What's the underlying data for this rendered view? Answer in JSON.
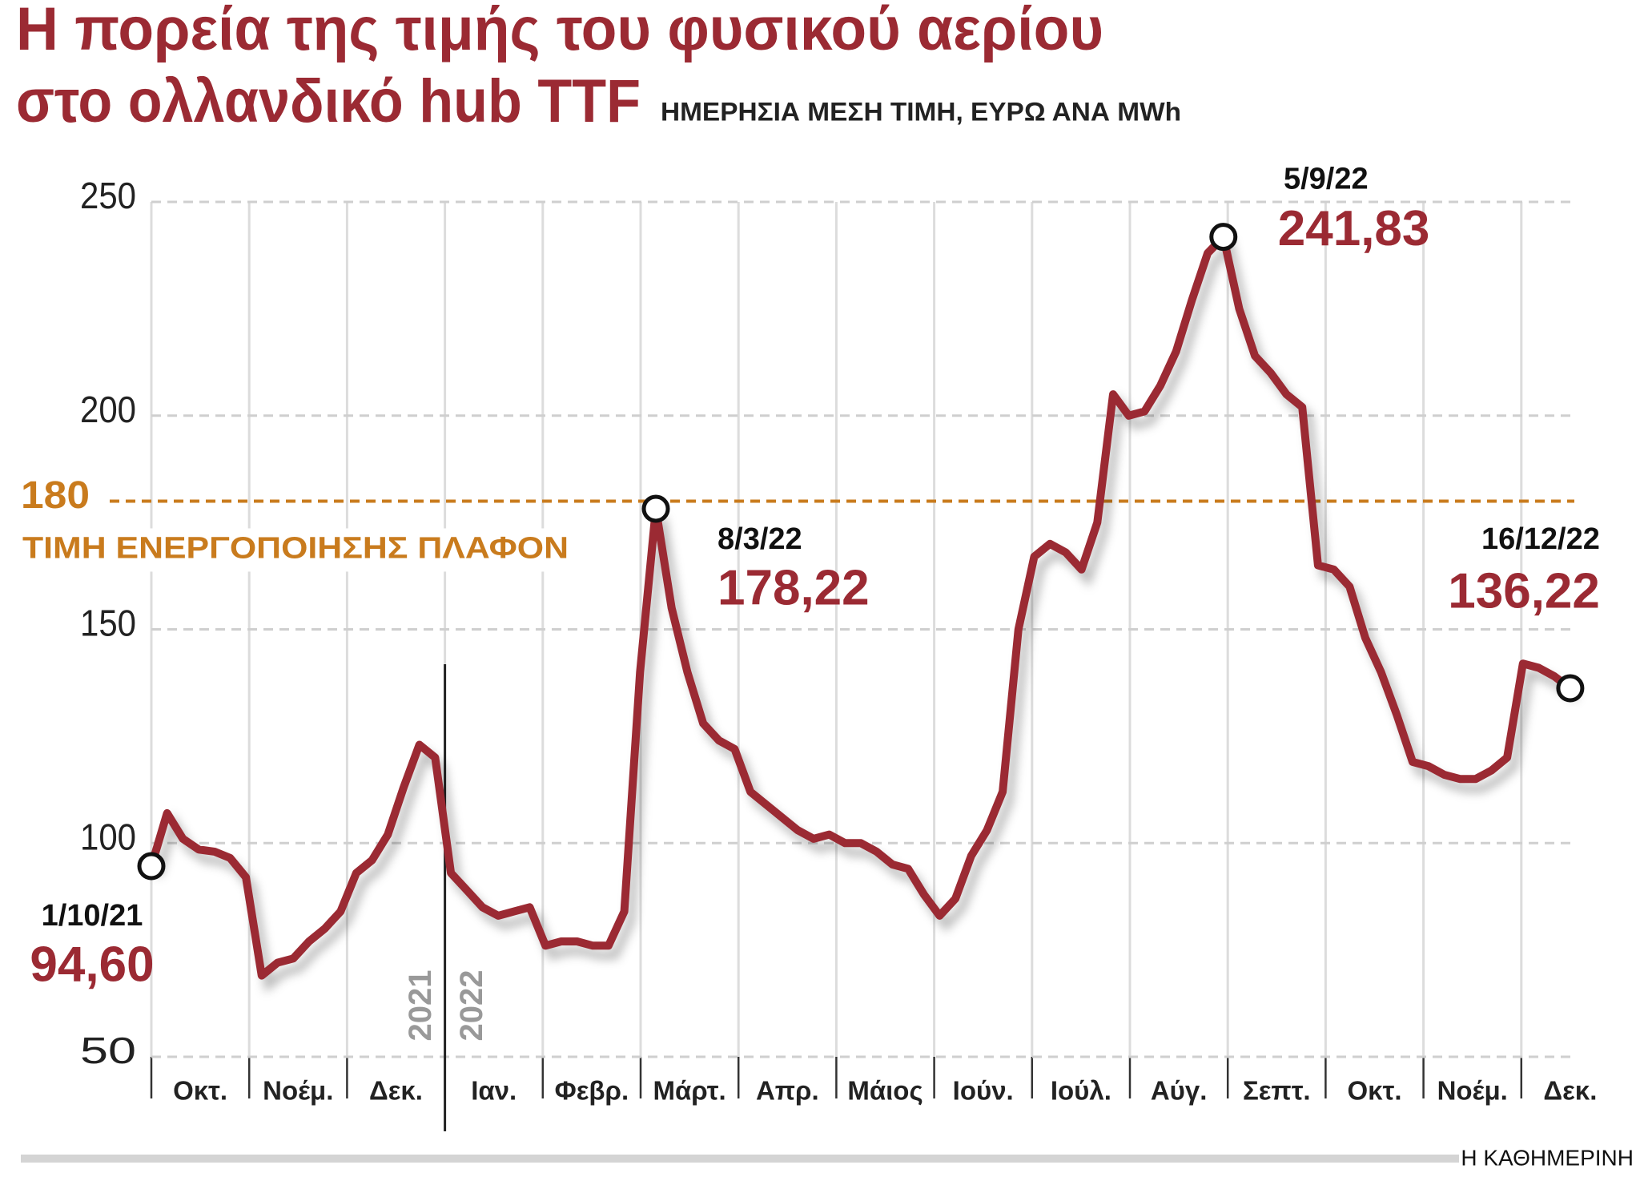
{
  "chart_data": {
    "type": "line",
    "title": [
      "Η πορεία της τιμής του φυσικού αερίου",
      "στο ολλανδικό hub TTF"
    ],
    "subtitle": "ΗΜΕΡΗΣΙΑ ΜΕΣΗ ΤΙΜΗ,  ΕΥΡΩ ΑΝΑ MWh",
    "months": [
      "Οκτ.",
      "Νοέμ.",
      "Δεκ.",
      "Ιαν.",
      "Φεβρ.",
      "Μάρτ.",
      "Απρ.",
      "Μάιος",
      "Ιούν.",
      "Ιούλ.",
      "Αύγ.",
      "Σεπτ.",
      "Οκτ.",
      "Νοέμ.",
      "Δεκ."
    ],
    "years": [
      "2021",
      "2022"
    ],
    "values": [
      94.6,
      107,
      101,
      98.5,
      98,
      96.5,
      92,
      69,
      72,
      73,
      77,
      80,
      84,
      93,
      96,
      102,
      113,
      123,
      120,
      93,
      89,
      85,
      83,
      84,
      85,
      76,
      77,
      77,
      76,
      76,
      84,
      140,
      178.22,
      155,
      140,
      128,
      124,
      122,
      112,
      109,
      106,
      103,
      101,
      102,
      100,
      100,
      98,
      95,
      94,
      88,
      83,
      87,
      97,
      103,
      112,
      150,
      167,
      170,
      168,
      164,
      175,
      205,
      200,
      201,
      207,
      215,
      227,
      238,
      241.83,
      225,
      214,
      210,
      205,
      202,
      165,
      164,
      160,
      148,
      140,
      130,
      119,
      118,
      116,
      115,
      115,
      117,
      120,
      142,
      141,
      139,
      136.22
    ],
    "color": "#9b2a33",
    "ylim": [
      50,
      250
    ],
    "yticks": [
      50,
      100,
      150,
      200,
      250
    ],
    "grid": true,
    "threshold": {
      "value": 180,
      "label": "ΤΙΜΗ ΕΝΕΡΓΟΠΟΙΗΣΗΣ ΠΛΑΦΟΝ",
      "color": "#c97b1d"
    },
    "annotations": [
      {
        "date": "1/10/21",
        "value": 94.6,
        "value_label": "94,60"
      },
      {
        "date": "8/3/22",
        "value": 178.22,
        "value_label": "178,22"
      },
      {
        "date": "5/9/22",
        "value": 241.83,
        "value_label": "241,83"
      },
      {
        "date": "16/12/22",
        "value": 136.22,
        "value_label": "136,22"
      }
    ],
    "source": "Η ΚΑΘΗΜΕΡΙΝΗ"
  }
}
